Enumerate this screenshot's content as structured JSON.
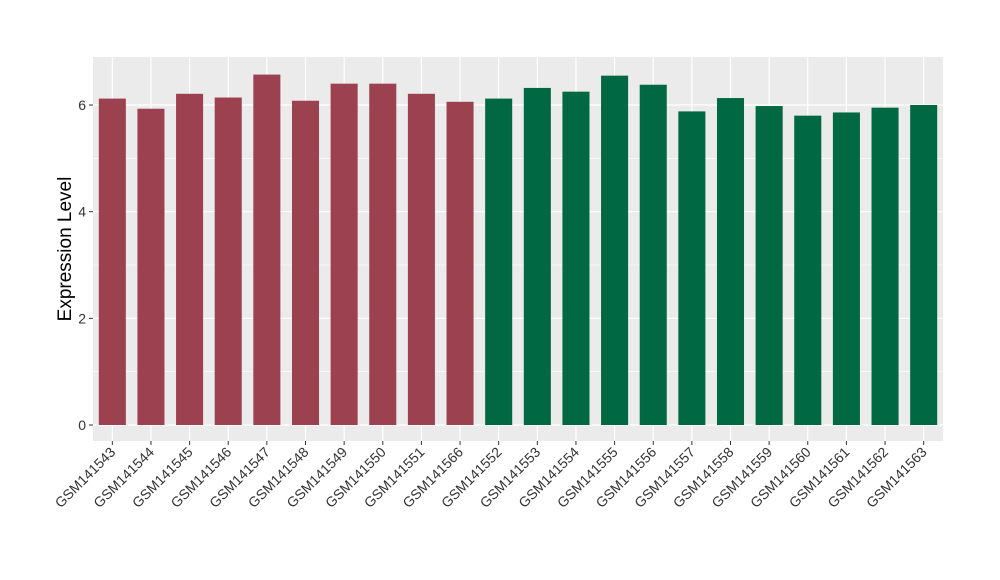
{
  "chart_data": {
    "type": "bar",
    "title": "",
    "xlabel": "",
    "ylabel": "Expression Level",
    "ylim": [
      -0.3,
      6.9
    ],
    "yticks": [
      0,
      2,
      4,
      6
    ],
    "grid": true,
    "legend": "none",
    "colors": {
      "group1": "#9b4150",
      "group2": "#006843",
      "panel": "#ebebeb",
      "grid": "#ffffff"
    },
    "categories": [
      "GSM141543",
      "GSM141544",
      "GSM141545",
      "GSM141546",
      "GSM141547",
      "GSM141548",
      "GSM141549",
      "GSM141550",
      "GSM141551",
      "GSM141566",
      "GSM141552",
      "GSM141553",
      "GSM141554",
      "GSM141555",
      "GSM141556",
      "GSM141557",
      "GSM141558",
      "GSM141559",
      "GSM141560",
      "GSM141561",
      "GSM141562",
      "GSM141563"
    ],
    "values": [
      6.12,
      5.93,
      6.21,
      6.14,
      6.57,
      6.08,
      6.4,
      6.4,
      6.21,
      6.06,
      6.12,
      6.32,
      6.25,
      6.55,
      6.38,
      5.88,
      6.13,
      5.98,
      5.8,
      5.86,
      5.95,
      6.0
    ],
    "groups": [
      "group1",
      "group1",
      "group1",
      "group1",
      "group1",
      "group1",
      "group1",
      "group1",
      "group1",
      "group1",
      "group2",
      "group2",
      "group2",
      "group2",
      "group2",
      "group2",
      "group2",
      "group2",
      "group2",
      "group2",
      "group2",
      "group2"
    ]
  }
}
